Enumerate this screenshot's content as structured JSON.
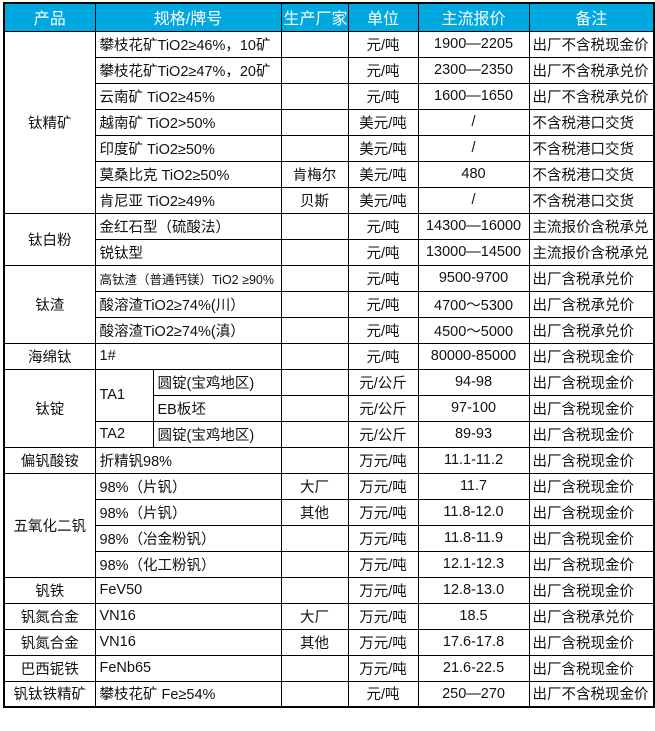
{
  "colors": {
    "header_bg": "#00A8E2",
    "header_text": "#FFFFFF",
    "body_text": "#111111",
    "grid": "#000000"
  },
  "table": {
    "headers": [
      "产品",
      "规格/牌号",
      "生产厂家",
      "单位",
      "主流报价",
      "备注"
    ],
    "rows": [
      {
        "product": {
          "text": "钛精矿",
          "rowspan": 7
        },
        "spec": "攀枝花矿TiO2≥46%，10矿",
        "maker": "",
        "unit": "元/吨",
        "price": "1900—2205",
        "note": "出厂不含税现金价"
      },
      {
        "spec": "攀枝花矿TiO2≥47%，20矿",
        "maker": "",
        "unit": "元/吨",
        "price": "2300—2350",
        "note": "出厂不含税承兑价"
      },
      {
        "spec": "云南矿 TiO2≥45%",
        "maker": "",
        "unit": "元/吨",
        "price": "1600—1650",
        "note": "出厂不含税承兑价"
      },
      {
        "spec": "越南矿 TiO2>50%",
        "maker": "",
        "unit": "美元/吨",
        "price": "/",
        "note": "不含税港口交货"
      },
      {
        "spec": "印度矿 TiO2≥50%",
        "maker": "",
        "unit": "美元/吨",
        "price": "/",
        "note": "不含税港口交货"
      },
      {
        "spec": "莫桑比克 TiO2≥50%",
        "maker": "肯梅尔",
        "unit": "美元/吨",
        "price": "480",
        "note": "不含税港口交货"
      },
      {
        "spec": "肯尼亚 TiO2≥49%",
        "maker": "贝斯",
        "unit": "美元/吨",
        "price": "/",
        "note": "不含税港口交货"
      },
      {
        "product": {
          "text": "钛白粉",
          "rowspan": 2
        },
        "spec": "金红石型（硫酸法）",
        "maker": "",
        "unit": "元/吨",
        "price": "14300—16000",
        "note": "主流报价含税承兑"
      },
      {
        "spec": "锐钛型",
        "maker": "",
        "unit": "元/吨",
        "price": "13000—14500",
        "note": "主流报价含税承兑"
      },
      {
        "product": {
          "text": "钛渣",
          "rowspan": 3
        },
        "spec": "高钛渣（普通钙镁）TiO2 ≥90%",
        "specSmall": true,
        "maker": "",
        "unit": "元/吨",
        "price": "9500-9700",
        "note": "出厂含税承兑价"
      },
      {
        "spec": "酸溶渣TiO2≥74%(川）",
        "maker": "",
        "unit": "元/吨",
        "price": "4700～5300",
        "note": "出厂含税承兑价"
      },
      {
        "spec": "酸溶渣TiO2≥74%(滇）",
        "maker": "",
        "unit": "元/吨",
        "price": "4500～5000",
        "note": "出厂含税承兑价"
      },
      {
        "product": {
          "text": "海绵钛",
          "rowspan": 1
        },
        "spec": "1#",
        "maker": "",
        "unit": "元/吨",
        "price": "80000-85000",
        "note": "出厂含税现金价"
      },
      {
        "product": {
          "text": "钛锭",
          "rowspan": 3
        },
        "spec1": {
          "text": "TA1",
          "rowspan": 2
        },
        "spec2": "圆锭(宝鸡地区)",
        "maker": "",
        "unit": "元/公斤",
        "price": "94-98",
        "note": "出厂含税现金价"
      },
      {
        "spec2": "EB板坯",
        "maker": "",
        "unit": "元/公斤",
        "price": "97-100",
        "note": "出厂含税现金价"
      },
      {
        "spec1": {
          "text": "TA2",
          "rowspan": 1
        },
        "spec2": "圆锭(宝鸡地区)",
        "maker": "",
        "unit": "元/公斤",
        "price": "89-93",
        "note": "出厂含税现金价"
      },
      {
        "product": {
          "text": "偏钒酸铵",
          "rowspan": 1
        },
        "spec": "折精钒98%",
        "maker": "",
        "unit": "万元/吨",
        "price": "11.1-11.2",
        "note": "出厂含税现金价"
      },
      {
        "product": {
          "text": "五氧化二钒",
          "rowspan": 4
        },
        "spec": "98%（片钒）",
        "maker": "大厂",
        "unit": "万元/吨",
        "price": "11.7",
        "note": "出厂含税现金价"
      },
      {
        "spec": "98%（片钒）",
        "maker": "其他",
        "unit": "万元/吨",
        "price": "11.8-12.0",
        "note": "出厂含税现金价"
      },
      {
        "spec": "98%（冶金粉钒）",
        "maker": "",
        "unit": "万元/吨",
        "price": "11.8-11.9",
        "note": "出厂含税现金价"
      },
      {
        "spec": "98%（化工粉钒）",
        "maker": "",
        "unit": "万元/吨",
        "price": "12.1-12.3",
        "note": "出厂含税现金价"
      },
      {
        "product": {
          "text": "钒铁",
          "rowspan": 1
        },
        "spec": "FeV50",
        "maker": "",
        "unit": "万元/吨",
        "price": "12.8-13.0",
        "note": "出厂含税现金价"
      },
      {
        "product": {
          "text": "钒氮合金",
          "rowspan": 1
        },
        "spec": "VN16",
        "maker": "大厂",
        "unit": "万元/吨",
        "price": "18.5",
        "note": "出厂含税承兑价"
      },
      {
        "product": {
          "text": "钒氮合金",
          "rowspan": 1
        },
        "spec": "VN16",
        "maker": "其他",
        "unit": "万元/吨",
        "price": "17.6-17.8",
        "note": "出厂含税现金价"
      },
      {
        "product": {
          "text": "巴西铌铁",
          "rowspan": 1
        },
        "spec": "FeNb65",
        "maker": "",
        "unit": "万元/吨",
        "price": "21.6-22.5",
        "note": "出厂含税现金价"
      },
      {
        "product": {
          "text": "钒钛铁精矿",
          "rowspan": 1
        },
        "spec": "攀枝花矿 Fe≥54%",
        "maker": "",
        "unit": "元/吨",
        "price": "250—270",
        "note": "出厂不含税现金价"
      }
    ]
  }
}
